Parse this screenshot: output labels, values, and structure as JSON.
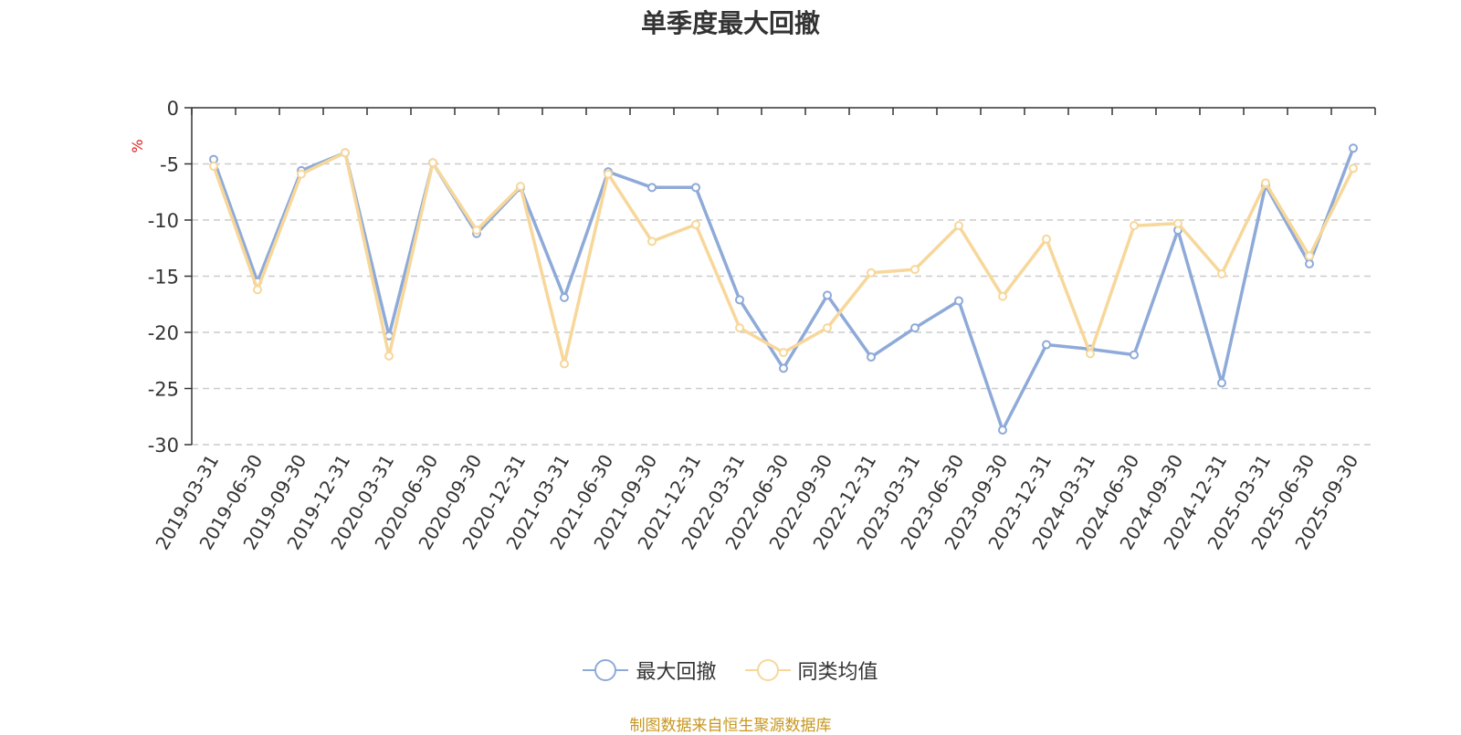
{
  "chart_data": {
    "type": "line",
    "title": "单季度最大回撤",
    "ylabel": "%",
    "xlabel": "",
    "ylim": [
      -30,
      0
    ],
    "yticks": [
      0,
      -5,
      -10,
      -15,
      -20,
      -25,
      -30
    ],
    "categories": [
      "2019-03-31",
      "2019-06-30",
      "2019-09-30",
      "2019-12-31",
      "2020-03-31",
      "2020-06-30",
      "2020-09-30",
      "2020-12-31",
      "2021-03-31",
      "2021-06-30",
      "2021-09-30",
      "2021-12-31",
      "2022-03-31",
      "2022-06-30",
      "2022-09-30",
      "2022-12-31",
      "2023-03-31",
      "2023-06-30",
      "2023-09-30",
      "2023-12-31",
      "2024-03-31",
      "2024-06-30",
      "2024-09-30",
      "2024-12-31",
      "2025-03-31",
      "2025-06-30",
      "2025-09-30"
    ],
    "series": [
      {
        "name": "最大回撤",
        "color": "#8eaad8",
        "values": [
          -4.6,
          -15.5,
          -5.6,
          -4.0,
          -20.3,
          -4.9,
          -11.2,
          -7.1,
          -16.9,
          -5.7,
          -7.1,
          -7.1,
          -17.1,
          -23.2,
          -16.7,
          -22.2,
          -19.6,
          -17.2,
          -28.7,
          -21.1,
          -21.5,
          -22.0,
          -10.9,
          -24.5,
          -6.9,
          -13.9,
          -3.6
        ]
      },
      {
        "name": "同类均值",
        "color": "#f7d79a",
        "values": [
          -5.2,
          -16.2,
          -5.9,
          -4.0,
          -22.1,
          -4.9,
          -10.9,
          -7.0,
          -22.8,
          -5.9,
          -11.9,
          -10.4,
          -19.6,
          -21.8,
          -19.6,
          -14.7,
          -14.4,
          -10.5,
          -16.8,
          -11.7,
          -21.9,
          -10.5,
          -10.3,
          -14.8,
          -6.7,
          -13.2,
          -5.4
        ]
      }
    ],
    "legend": "bottom-center",
    "grid": true
  },
  "source_note": "制图数据来自恒生聚源数据库"
}
